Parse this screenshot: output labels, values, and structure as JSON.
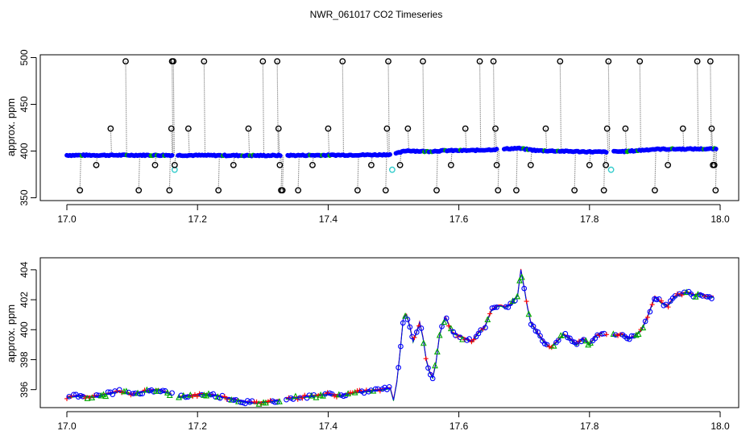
{
  "title": "NWR_061017  CO2 Timeseries",
  "colors": {
    "blue": "#0000ff",
    "red": "#ff0000",
    "green": "#00aa00",
    "cyan": "#33cccc",
    "grey": "#8c8c8c",
    "black": "#000000"
  },
  "chart_data": [
    {
      "type": "scatter",
      "ylabel": "approx. ppm",
      "xlim": [
        17.0,
        18.0
      ],
      "ylim": [
        347,
        503
      ],
      "x_ticks": [
        "17.0",
        "17.2",
        "17.4",
        "17.6",
        "17.8",
        "18.0"
      ],
      "y_ticks": [
        "350",
        "400",
        "450",
        "500"
      ],
      "baseline": [
        [
          17.0,
          395.5
        ],
        [
          17.1,
          395.6
        ],
        [
          17.2,
          395.4
        ],
        [
          17.3,
          395.2
        ],
        [
          17.4,
          395.6
        ],
        [
          17.48,
          396.0
        ],
        [
          17.5,
          396.5
        ],
        [
          17.52,
          400.5
        ],
        [
          17.55,
          399.5
        ],
        [
          17.58,
          400.5
        ],
        [
          17.62,
          400.6
        ],
        [
          17.66,
          401.8
        ],
        [
          17.69,
          403.0
        ],
        [
          17.72,
          400.5
        ],
        [
          17.78,
          399.5
        ],
        [
          17.82,
          399.0
        ],
        [
          17.86,
          399.8
        ],
        [
          17.9,
          402.0
        ],
        [
          17.95,
          402.2
        ],
        [
          18.0,
          402.3
        ]
      ],
      "flagged": [
        {
          "x": 17.02,
          "y": 358
        },
        {
          "x": 17.045,
          "y": 385
        },
        {
          "x": 17.067,
          "y": 424
        },
        {
          "x": 17.09,
          "y": 496
        },
        {
          "x": 17.11,
          "y": 358
        },
        {
          "x": 17.135,
          "y": 385
        },
        {
          "x": 17.157,
          "y": 358
        },
        {
          "x": 17.16,
          "y": 424
        },
        {
          "x": 17.161,
          "y": 496
        },
        {
          "x": 17.163,
          "y": 496
        },
        {
          "x": 17.165,
          "y": 385
        },
        {
          "x": 17.186,
          "y": 424
        },
        {
          "x": 17.21,
          "y": 496
        },
        {
          "x": 17.232,
          "y": 358
        },
        {
          "x": 17.255,
          "y": 385
        },
        {
          "x": 17.278,
          "y": 424
        },
        {
          "x": 17.3,
          "y": 496
        },
        {
          "x": 17.322,
          "y": 496
        },
        {
          "x": 17.324,
          "y": 424
        },
        {
          "x": 17.326,
          "y": 385
        },
        {
          "x": 17.328,
          "y": 358
        },
        {
          "x": 17.33,
          "y": 358
        },
        {
          "x": 17.354,
          "y": 358
        },
        {
          "x": 17.376,
          "y": 385
        },
        {
          "x": 17.4,
          "y": 424
        },
        {
          "x": 17.422,
          "y": 496
        },
        {
          "x": 17.445,
          "y": 358
        },
        {
          "x": 17.466,
          "y": 385
        },
        {
          "x": 17.488,
          "y": 358
        },
        {
          "x": 17.49,
          "y": 424
        },
        {
          "x": 17.492,
          "y": 496
        },
        {
          "x": 17.51,
          "y": 385
        },
        {
          "x": 17.522,
          "y": 424
        },
        {
          "x": 17.545,
          "y": 496
        },
        {
          "x": 17.566,
          "y": 358
        },
        {
          "x": 17.588,
          "y": 385
        },
        {
          "x": 17.61,
          "y": 424
        },
        {
          "x": 17.632,
          "y": 496
        },
        {
          "x": 17.653,
          "y": 496
        },
        {
          "x": 17.656,
          "y": 424
        },
        {
          "x": 17.658,
          "y": 385
        },
        {
          "x": 17.66,
          "y": 358
        },
        {
          "x": 17.688,
          "y": 358
        },
        {
          "x": 17.71,
          "y": 385
        },
        {
          "x": 17.733,
          "y": 424
        },
        {
          "x": 17.755,
          "y": 496
        },
        {
          "x": 17.777,
          "y": 358
        },
        {
          "x": 17.8,
          "y": 385
        },
        {
          "x": 17.822,
          "y": 358
        },
        {
          "x": 17.825,
          "y": 385
        },
        {
          "x": 17.827,
          "y": 424
        },
        {
          "x": 17.829,
          "y": 496
        },
        {
          "x": 17.855,
          "y": 424
        },
        {
          "x": 17.877,
          "y": 496
        },
        {
          "x": 17.9,
          "y": 358
        },
        {
          "x": 17.92,
          "y": 385
        },
        {
          "x": 17.943,
          "y": 424
        },
        {
          "x": 17.965,
          "y": 496
        },
        {
          "x": 17.985,
          "y": 496
        },
        {
          "x": 17.987,
          "y": 424
        },
        {
          "x": 17.989,
          "y": 385
        },
        {
          "x": 17.991,
          "y": 385
        },
        {
          "x": 17.993,
          "y": 358
        }
      ],
      "cyan_points": [
        {
          "x": 17.165,
          "y": 380
        },
        {
          "x": 17.498,
          "y": 380
        },
        {
          "x": 17.833,
          "y": 380
        }
      ],
      "gaps": [
        [
          17.162,
          17.168
        ],
        [
          17.328,
          17.336
        ],
        [
          17.495,
          17.502
        ],
        [
          17.66,
          17.668
        ],
        [
          17.828,
          17.836
        ]
      ]
    },
    {
      "type": "line",
      "ylabel": "approx. ppm",
      "xlim": [
        17.0,
        18.0
      ],
      "ylim": [
        394.8,
        404.8
      ],
      "x_ticks": [
        "17.0",
        "17.2",
        "17.4",
        "17.6",
        "17.8",
        "18.0"
      ],
      "y_ticks": [
        "396",
        "398",
        "400",
        "402",
        "404"
      ],
      "series": [
        {
          "points": [
            [
              17.0,
              395.5
            ],
            [
              17.02,
              395.6
            ],
            [
              17.04,
              395.5
            ],
            [
              17.06,
              395.7
            ],
            [
              17.08,
              395.9
            ],
            [
              17.1,
              395.7
            ],
            [
              17.12,
              395.9
            ],
            [
              17.14,
              396.0
            ],
            [
              17.16,
              395.7
            ],
            [
              17.17,
              395.5
            ],
            [
              17.19,
              395.6
            ],
            [
              17.21,
              395.7
            ],
            [
              17.23,
              395.6
            ],
            [
              17.25,
              395.4
            ],
            [
              17.27,
              395.2
            ],
            [
              17.29,
              395.1
            ],
            [
              17.31,
              395.2
            ],
            [
              17.325,
              395.3
            ],
            [
              17.335,
              395.4
            ],
            [
              17.36,
              395.5
            ],
            [
              17.38,
              395.6
            ],
            [
              17.4,
              395.7
            ],
            [
              17.42,
              395.6
            ],
            [
              17.44,
              395.8
            ],
            [
              17.46,
              395.9
            ],
            [
              17.48,
              396.0
            ],
            [
              17.495,
              396.1
            ],
            [
              17.5,
              395.3
            ],
            [
              17.505,
              396.5
            ],
            [
              17.51,
              398.5
            ],
            [
              17.515,
              400.8
            ],
            [
              17.52,
              401.0
            ],
            [
              17.525,
              400.2
            ],
            [
              17.53,
              399.2
            ],
            [
              17.535,
              399.8
            ],
            [
              17.54,
              400.5
            ],
            [
              17.545,
              399.5
            ],
            [
              17.55,
              398.0
            ],
            [
              17.555,
              397.2
            ],
            [
              17.56,
              396.8
            ],
            [
              17.565,
              397.8
            ],
            [
              17.57,
              399.5
            ],
            [
              17.575,
              400.4
            ],
            [
              17.58,
              400.8
            ],
            [
              17.585,
              400.3
            ],
            [
              17.59,
              399.8
            ],
            [
              17.6,
              399.6
            ],
            [
              17.61,
              399.4
            ],
            [
              17.62,
              399.2
            ],
            [
              17.63,
              399.8
            ],
            [
              17.64,
              400.2
            ],
            [
              17.65,
              401.3
            ],
            [
              17.66,
              401.6
            ],
            [
              17.665,
              401.6
            ],
            [
              17.67,
              401.5
            ],
            [
              17.68,
              401.7
            ],
            [
              17.69,
              402.3
            ],
            [
              17.695,
              404.0
            ],
            [
              17.7,
              402.8
            ],
            [
              17.705,
              401.5
            ],
            [
              17.71,
              400.5
            ],
            [
              17.72,
              399.8
            ],
            [
              17.73,
              399.2
            ],
            [
              17.74,
              398.8
            ],
            [
              17.75,
              399.2
            ],
            [
              17.76,
              399.7
            ],
            [
              17.77,
              399.4
            ],
            [
              17.78,
              399.0
            ],
            [
              17.79,
              399.4
            ],
            [
              17.8,
              399.0
            ],
            [
              17.81,
              399.6
            ],
            [
              17.82,
              399.8
            ],
            [
              17.835,
              399.6
            ],
            [
              17.85,
              399.7
            ],
            [
              17.86,
              399.4
            ],
            [
              17.87,
              399.6
            ],
            [
              17.88,
              400.0
            ],
            [
              17.89,
              401.0
            ],
            [
              17.9,
              402.2
            ],
            [
              17.91,
              401.8
            ],
            [
              17.92,
              401.6
            ],
            [
              17.93,
              402.2
            ],
            [
              17.94,
              402.4
            ],
            [
              17.95,
              402.5
            ],
            [
              17.96,
              402.3
            ],
            [
              17.97,
              402.4
            ],
            [
              17.98,
              402.2
            ],
            [
              17.99,
              402.2
            ]
          ]
        }
      ],
      "breaks": [
        17.165,
        17.33,
        17.5,
        17.665,
        17.83
      ]
    }
  ]
}
